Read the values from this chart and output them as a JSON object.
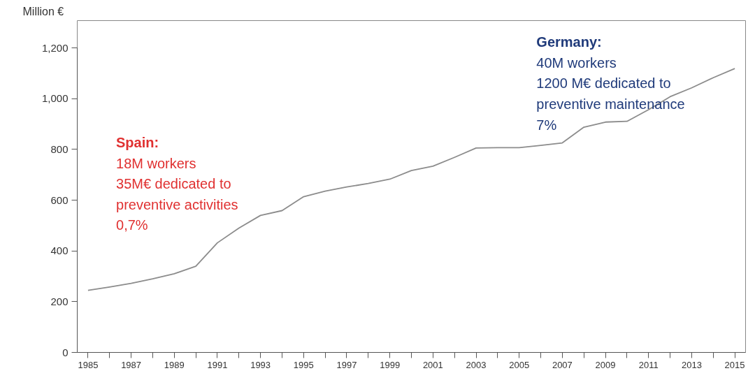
{
  "chart_data": {
    "type": "line",
    "ylabel": "Million €",
    "x": [
      1985,
      1986,
      1987,
      1988,
      1989,
      1990,
      1991,
      1992,
      1993,
      1994,
      1995,
      1996,
      1997,
      1998,
      1999,
      2000,
      2001,
      2002,
      2003,
      2004,
      2005,
      2006,
      2007,
      2008,
      2009,
      2010,
      2011,
      2012,
      2013,
      2014,
      2015
    ],
    "series": [
      {
        "color": "#8c8c8c",
        "values": [
          245,
          258,
          272,
          290,
          310,
          340,
          432,
          490,
          540,
          559,
          614,
          636,
          652,
          666,
          683,
          717,
          734,
          769,
          806,
          807,
          807,
          816,
          826,
          888,
          908,
          911,
          957,
          1008,
          1043,
          1083,
          1119
        ]
      }
    ],
    "xlim": [
      1984.5,
      2015.5
    ],
    "xticks": [
      {
        "value": 1985,
        "label": "1985"
      },
      {
        "value": 1986,
        "label": null
      },
      {
        "value": 1987,
        "label": "1987"
      },
      {
        "value": 1988,
        "label": null
      },
      {
        "value": 1989,
        "label": "1989"
      },
      {
        "value": 1990,
        "label": null
      },
      {
        "value": 1991,
        "label": "1991"
      },
      {
        "value": 1992,
        "label": null
      },
      {
        "value": 1993,
        "label": "1993"
      },
      {
        "value": 1994,
        "label": null
      },
      {
        "value": 1995,
        "label": "1995"
      },
      {
        "value": 1996,
        "label": null
      },
      {
        "value": 1997,
        "label": "1997"
      },
      {
        "value": 1998,
        "label": null
      },
      {
        "value": 1999,
        "label": "1999"
      },
      {
        "value": 2000,
        "label": null
      },
      {
        "value": 2001,
        "label": "2001"
      },
      {
        "value": 2002,
        "label": null
      },
      {
        "value": 2003,
        "label": "2003"
      },
      {
        "value": 2004,
        "label": null
      },
      {
        "value": 2005,
        "label": "2005"
      },
      {
        "value": 2006,
        "label": null
      },
      {
        "value": 2007,
        "label": "2007"
      },
      {
        "value": 2008,
        "label": null
      },
      {
        "value": 2009,
        "label": "2009"
      },
      {
        "value": 2010,
        "label": null
      },
      {
        "value": 2011,
        "label": "2011"
      },
      {
        "value": 2012,
        "label": null
      },
      {
        "value": 2013,
        "label": "2013"
      },
      {
        "value": 2014,
        "label": null
      },
      {
        "value": 2015,
        "label": "2015"
      }
    ],
    "ylim": [
      0,
      1200
    ],
    "yticks": [
      {
        "value": 0,
        "label": "0"
      },
      {
        "value": 200,
        "label": "200"
      },
      {
        "value": 400,
        "label": "400"
      },
      {
        "value": 600,
        "label": "600"
      },
      {
        "value": 800,
        "label": "800"
      },
      {
        "value": 1000,
        "label": "1,000"
      },
      {
        "value": 1200,
        "label": "1,200"
      }
    ],
    "grid": false,
    "marker": "none",
    "line_style": "solid",
    "annotations": [
      "Spain:\n18M workers\n35M€ dedicated to\npreventive activities\n0,7%",
      "Germany:\n 40M workers\n1200 M€ dedicated to\npreventive maintenance\n7%"
    ]
  }
}
